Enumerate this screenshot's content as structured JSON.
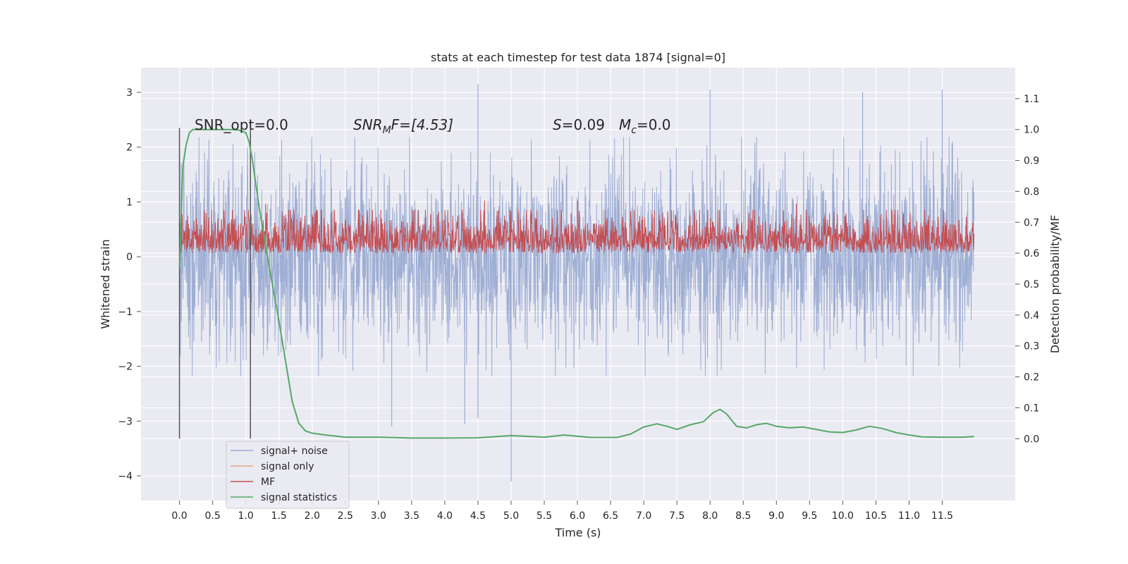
{
  "chart_data": {
    "type": "line",
    "title": "stats at each timestep for test data 1874 [signal=0]",
    "xlabel": "Time (s)",
    "ylabel_left": "Whitened strain",
    "ylabel_right": "Detection probability/MF",
    "xlim": [
      -0.58,
      12.6
    ],
    "ylim_left": [
      -4.45,
      3.45
    ],
    "ylim_right": [
      -0.2,
      1.2
    ],
    "grid": true,
    "legend_position": "lower-left",
    "x_ticks": [
      0.0,
      0.5,
      1.0,
      1.5,
      2.0,
      2.5,
      3.0,
      3.5,
      4.0,
      4.5,
      5.0,
      5.5,
      6.0,
      6.5,
      7.0,
      7.5,
      8.0,
      8.5,
      9.0,
      9.5,
      10.0,
      10.5,
      11.0,
      11.5
    ],
    "x_tick_labels": [
      "0.0",
      "0.5",
      "1.0",
      "1.5",
      "2.0",
      "2.5",
      "3.0",
      "3.5",
      "4.0",
      "4.5",
      "5.0",
      "5.5",
      "6.0",
      "6.5",
      "7.0",
      "7.5",
      "8.0",
      "8.5",
      "9.0",
      "9.5",
      "10.0",
      "10.5",
      "11.0",
      "11.5"
    ],
    "y_left_ticks": [
      3,
      2,
      1,
      0,
      -1,
      -2,
      -3,
      -4
    ],
    "y_left_tick_labels": [
      "3",
      "2",
      "1",
      "0",
      "−1",
      "−2",
      "−3",
      "−4"
    ],
    "y_right_ticks": [
      1.1,
      1.0,
      0.9,
      0.8,
      0.7,
      0.6,
      0.5,
      0.4,
      0.3,
      0.2,
      0.1,
      0.0
    ],
    "y_right_tick_labels": [
      "1.1",
      "1.0",
      "0.9",
      "0.8",
      "0.7",
      "0.6",
      "0.5",
      "0.4",
      "0.3",
      "0.2",
      "0.1",
      "0.0"
    ],
    "annotations": {
      "snr_opt": "SNR_opt=0.0",
      "snr_mf_label": "SNR",
      "snr_mf_sub": "M",
      "snr_mf_rest": "F=[4.53]",
      "s_label": "S",
      "s_rest": "=0.09",
      "mc_label": "M",
      "mc_sub": "c",
      "mc_rest": "=0.0"
    },
    "vertical_markers_x": [
      0.0,
      1.07
    ],
    "series": [
      {
        "name": "signal+ noise",
        "color": "#9aabd2",
        "axis": "left",
        "style": "dense noise, symmetric about 0",
        "x_range": [
          0.0,
          11.98
        ],
        "typical_range": [
          -1.9,
          1.9
        ],
        "peak_positions": [
          [
            4.5,
            3.15
          ],
          [
            8.0,
            3.05
          ],
          [
            10.3,
            3.0
          ],
          [
            11.5,
            3.05
          ]
        ],
        "dip_positions": [
          [
            5.0,
            -4.1
          ],
          [
            3.2,
            -3.1
          ],
          [
            4.3,
            -3.05
          ],
          [
            4.5,
            -2.95
          ]
        ]
      },
      {
        "name": "signal only",
        "color": "#e8a38c",
        "axis": "left",
        "values": "zero (no signal present)"
      },
      {
        "name": "MF",
        "color": "#c44e52",
        "axis": "right",
        "style": "dense noise",
        "x_range": [
          0.0,
          11.98
        ],
        "typical_range": [
          0.6,
          0.74
        ],
        "peak_positions": [
          [
            4.6,
            0.77
          ],
          [
            6.0,
            0.77
          ],
          [
            1.3,
            0.76
          ],
          [
            9.3,
            0.76
          ]
        ]
      },
      {
        "name": "signal statistics",
        "color": "#55a868",
        "axis": "right",
        "x": [
          0.0,
          0.05,
          0.1,
          0.15,
          0.2,
          0.4,
          0.6,
          0.8,
          0.9,
          1.0,
          1.05,
          1.1,
          1.2,
          1.3,
          1.4,
          1.5,
          1.6,
          1.7,
          1.8,
          1.9,
          2.0,
          2.2,
          2.5,
          3.0,
          3.5,
          4.0,
          4.5,
          5.0,
          5.5,
          5.8,
          6.2,
          6.6,
          6.8,
          7.0,
          7.2,
          7.35,
          7.5,
          7.7,
          7.9,
          8.05,
          8.15,
          8.25,
          8.4,
          8.55,
          8.7,
          8.85,
          9.0,
          9.2,
          9.4,
          9.6,
          9.8,
          10.0,
          10.2,
          10.4,
          10.6,
          10.8,
          11.0,
          11.2,
          11.5,
          11.8,
          11.98
        ],
        "y": [
          0.55,
          0.88,
          0.95,
          0.99,
          1.0,
          1.0,
          1.0,
          1.0,
          0.998,
          0.99,
          0.96,
          0.9,
          0.75,
          0.62,
          0.5,
          0.38,
          0.25,
          0.12,
          0.05,
          0.025,
          0.018,
          0.012,
          0.005,
          0.005,
          0.002,
          0.002,
          0.003,
          0.01,
          0.005,
          0.012,
          0.004,
          0.004,
          0.015,
          0.038,
          0.048,
          0.04,
          0.03,
          0.045,
          0.055,
          0.085,
          0.095,
          0.08,
          0.04,
          0.035,
          0.045,
          0.05,
          0.04,
          0.035,
          0.038,
          0.03,
          0.022,
          0.02,
          0.028,
          0.04,
          0.033,
          0.02,
          0.012,
          0.006,
          0.005,
          0.005,
          0.007
        ]
      }
    ]
  }
}
